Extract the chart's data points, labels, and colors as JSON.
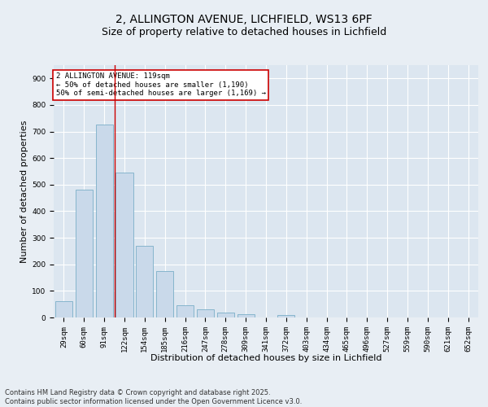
{
  "title": "2, ALLINGTON AVENUE, LICHFIELD, WS13 6PF",
  "subtitle": "Size of property relative to detached houses in Lichfield",
  "xlabel": "Distribution of detached houses by size in Lichfield",
  "ylabel": "Number of detached properties",
  "categories": [
    "29sqm",
    "60sqm",
    "91sqm",
    "122sqm",
    "154sqm",
    "185sqm",
    "216sqm",
    "247sqm",
    "278sqm",
    "309sqm",
    "341sqm",
    "372sqm",
    "403sqm",
    "434sqm",
    "465sqm",
    "496sqm",
    "527sqm",
    "559sqm",
    "590sqm",
    "621sqm",
    "652sqm"
  ],
  "values": [
    60,
    480,
    725,
    545,
    270,
    175,
    45,
    30,
    17,
    12,
    0,
    8,
    0,
    0,
    0,
    0,
    0,
    0,
    0,
    0,
    0
  ],
  "bar_color": "#c9d9ea",
  "bar_edge_color": "#7aaec8",
  "vline_x_index": 3,
  "vline_color": "#cc0000",
  "annotation_text": "2 ALLINGTON AVENUE: 119sqm\n← 50% of detached houses are smaller (1,190)\n50% of semi-detached houses are larger (1,169) →",
  "annotation_box_color": "#ffffff",
  "annotation_box_edge": "#cc0000",
  "ylim": [
    0,
    950
  ],
  "yticks": [
    0,
    100,
    200,
    300,
    400,
    500,
    600,
    700,
    800,
    900
  ],
  "bg_color": "#e8eef4",
  "plot_bg_color": "#dce6f0",
  "grid_color": "#ffffff",
  "footer": "Contains HM Land Registry data © Crown copyright and database right 2025.\nContains public sector information licensed under the Open Government Licence v3.0.",
  "title_fontsize": 10,
  "subtitle_fontsize": 9,
  "axis_label_fontsize": 8,
  "tick_fontsize": 6.5,
  "footer_fontsize": 6,
  "annotation_fontsize": 6.5
}
